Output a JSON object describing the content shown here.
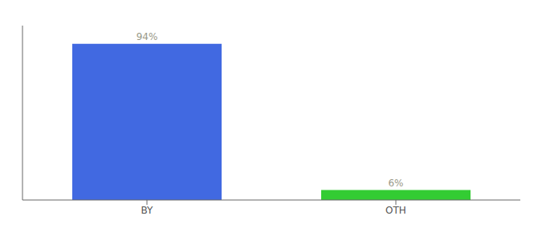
{
  "chart_data": {
    "type": "bar",
    "categories": [
      "BY",
      "OTH"
    ],
    "values": [
      94,
      6
    ],
    "colors": [
      "#4169e1",
      "#33cc33"
    ],
    "value_labels": [
      "94%",
      "6%"
    ],
    "data_labels": true,
    "ylim": [
      0,
      105
    ],
    "tick_labels": "x",
    "grid": false
  }
}
